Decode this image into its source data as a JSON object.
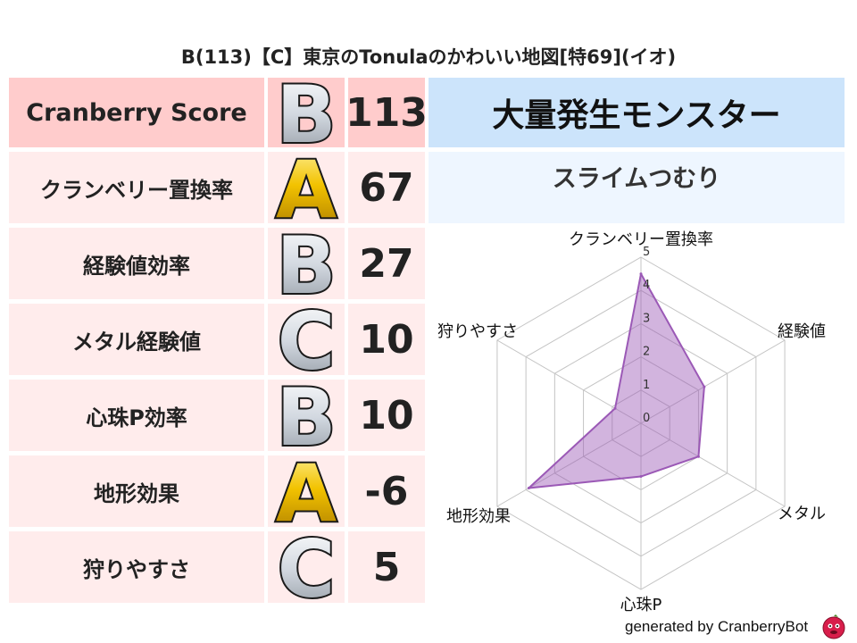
{
  "title": "B(113)【C】東京のTonulaのかわいい地図[特69](イオ)",
  "score_table": {
    "header": {
      "label": "Cranberry Score",
      "grade": "B",
      "value": "113"
    },
    "rows": [
      {
        "label": "クランベリー置換率",
        "grade": "A",
        "value": "67"
      },
      {
        "label": "経験値効率",
        "grade": "B",
        "value": "27"
      },
      {
        "label": "メタル経験値",
        "grade": "C",
        "value": "10"
      },
      {
        "label": "心珠P効率",
        "grade": "B",
        "value": "10"
      },
      {
        "label": "地形効果",
        "grade": "A",
        "value": "-6"
      },
      {
        "label": "狩りやすさ",
        "grade": "C",
        "value": "5"
      }
    ]
  },
  "monster": {
    "header": "大量発生モンスター",
    "name": "スライムつむり"
  },
  "colors": {
    "header_bg": "#ffcccc",
    "row_bg": "#ffecec",
    "monster_header_bg": "#cce4fb",
    "monster_name_bg": "#eef6ff",
    "series": "#9b59b6",
    "grade_A": "#e8b400",
    "grade_B": "#c8ced6",
    "grade_C": "#c8ced6"
  },
  "chart_data": {
    "type": "radar",
    "axes": [
      "クランベリー置換率",
      "経験値",
      "メタル",
      "心珠P",
      "地形効果",
      "狩りやすさ"
    ],
    "values": [
      4.5,
      2.2,
      2.0,
      1.6,
      3.9,
      0.9
    ],
    "range": [
      0,
      5
    ],
    "ticks": [
      "0",
      "1",
      "2",
      "3",
      "4",
      "5"
    ],
    "grid": true
  },
  "footer": {
    "text": "generated by CranberryBot",
    "logo_icon": "cranberry-mascot-icon"
  }
}
